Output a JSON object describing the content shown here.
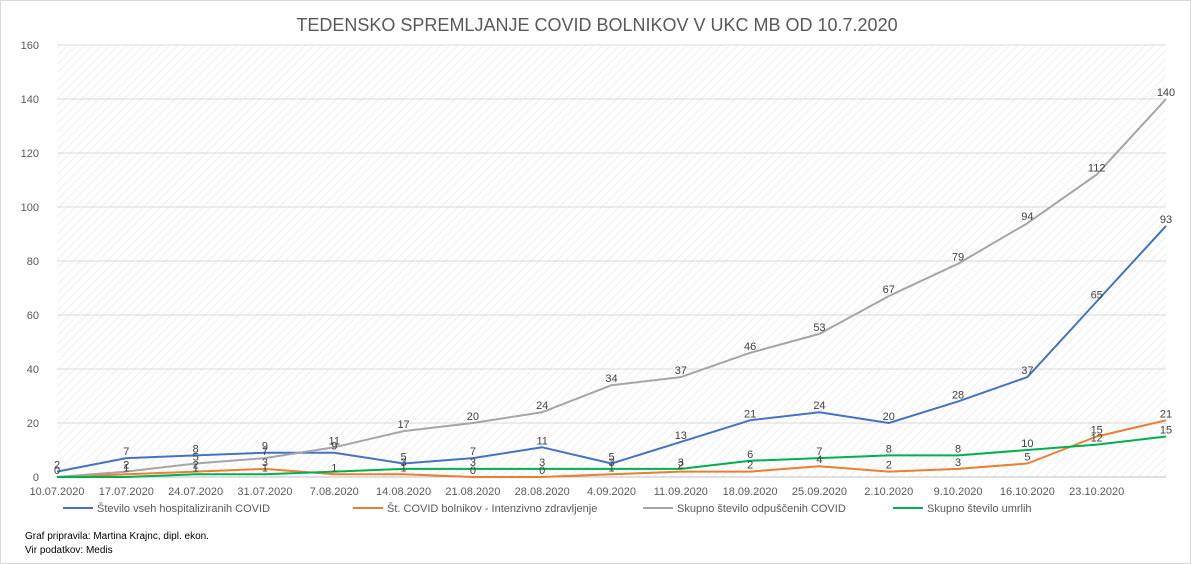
{
  "chart_data": {
    "type": "line",
    "title": "TEDENSKO SPREMLJANJE COVID BOLNIKOV V UKC MB OD 10.7.2020",
    "xlabel": "",
    "ylabel": "",
    "ylim": [
      0,
      160
    ],
    "yticks": [
      0,
      20,
      40,
      60,
      80,
      100,
      120,
      140,
      160
    ],
    "grid": "horizontal, hatched plot area",
    "legend_position": "bottom",
    "x": [
      "10.07.2020",
      "17.07.2020",
      "24.07.2020",
      "31.07.2020",
      "7.08.2020",
      "14.08.2020",
      "21.08.2020",
      "28.08.2020",
      "4.09.2020",
      "11.09.2020",
      "18.09.2020",
      "25.09.2020",
      "2.10.2020",
      "9.10.2020",
      "16.10.2020",
      "23.10.2020",
      ""
    ],
    "series": [
      {
        "name": "Število vseh hospitaliziranih COVID",
        "color": "#4472c4",
        "values": [
          2,
          7,
          8,
          9,
          9,
          5,
          7,
          11,
          5,
          13,
          21,
          24,
          20,
          28,
          37,
          65,
          93
        ],
        "labels": [
          "2",
          "7",
          "8",
          "9",
          "9",
          "5",
          "7",
          "11",
          "5",
          "13",
          "21",
          "24",
          "20",
          "28",
          "37",
          "65",
          "93"
        ]
      },
      {
        "name": "Št. COVID bolnikov - Intenzivno zdravljenje",
        "color": "#ed7d31",
        "values": [
          0,
          1,
          2,
          3,
          1,
          1,
          0,
          0,
          1,
          2,
          2,
          4,
          2,
          3,
          5,
          15,
          21
        ],
        "labels": [
          "",
          "1",
          "2",
          "3",
          "1",
          "1",
          "0",
          "0",
          "1",
          "2",
          "2",
          "4",
          "2",
          "3",
          "5",
          "15",
          "21"
        ]
      },
      {
        "name": "Skupno število odpuščenih COVID",
        "color": "#a5a5a5",
        "values": [
          0,
          2,
          5,
          7,
          11,
          17,
          20,
          24,
          34,
          37,
          46,
          53,
          67,
          79,
          94,
          112,
          140
        ],
        "labels": [
          "",
          "2",
          "5",
          "7",
          "11",
          "17",
          "20",
          "24",
          "34",
          "37",
          "46",
          "53",
          "67",
          "79",
          "94",
          "112",
          "140"
        ]
      },
      {
        "name": "Skupno število umrlih",
        "color": "#00b050",
        "values": [
          0,
          0,
          1,
          1,
          2,
          3,
          3,
          3,
          3,
          3,
          6,
          7,
          8,
          8,
          10,
          12,
          15
        ],
        "labels": [
          "0",
          "",
          "1",
          "1",
          "",
          "3",
          "3",
          "3",
          "3",
          "3",
          "6",
          "7",
          "8",
          "8",
          "10",
          "12",
          "15"
        ]
      }
    ]
  },
  "footer": {
    "credit_line1": "Graf pripravila: Martina Krajnc, dipl. ekon.",
    "credit_line2": "Vir podatkov: Medis"
  }
}
